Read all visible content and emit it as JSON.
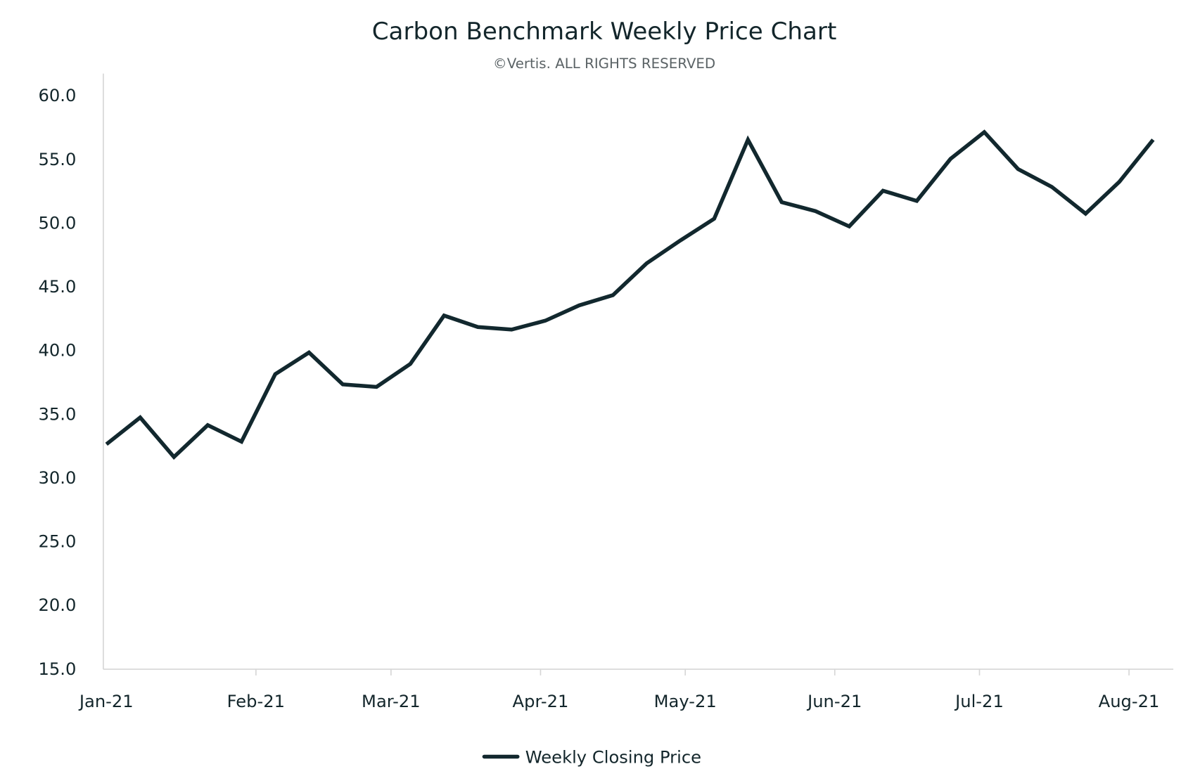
{
  "chart_data": {
    "type": "line",
    "title": "Carbon Benchmark Weekly Price Chart",
    "subtitle": "©Vertis. ALL RIGHTS RESERVED",
    "xlabel": "",
    "ylabel": "",
    "ylim": [
      15,
      60
    ],
    "y_ticks": [
      "15.0",
      "20.0",
      "25.0",
      "30.0",
      "35.0",
      "40.0",
      "45.0",
      "50.0",
      "55.0",
      "60.0"
    ],
    "x_ticks": [
      {
        "label": "Jan-21",
        "date": "2021-01-01"
      },
      {
        "label": "Feb-21",
        "date": "2021-02-01"
      },
      {
        "label": "Mar-21",
        "date": "2021-03-01"
      },
      {
        "label": "Apr-21",
        "date": "2021-04-01"
      },
      {
        "label": "May-21",
        "date": "2021-05-01"
      },
      {
        "label": "Jun-21",
        "date": "2021-06-01"
      },
      {
        "label": "Jul-21",
        "date": "2021-07-01"
      },
      {
        "label": "Aug-21",
        "date": "2021-08-01"
      }
    ],
    "grid": false,
    "legend_position": "bottom",
    "series": [
      {
        "name": "Weekly Closing Price",
        "color": "#12282e",
        "x": [
          "2021-01-01",
          "2021-01-08",
          "2021-01-15",
          "2021-01-22",
          "2021-01-29",
          "2021-02-05",
          "2021-02-12",
          "2021-02-19",
          "2021-02-26",
          "2021-03-05",
          "2021-03-12",
          "2021-03-19",
          "2021-03-26",
          "2021-04-02",
          "2021-04-09",
          "2021-04-16",
          "2021-04-23",
          "2021-04-30",
          "2021-05-07",
          "2021-05-14",
          "2021-05-21",
          "2021-05-28",
          "2021-06-04",
          "2021-06-11",
          "2021-06-18",
          "2021-06-25",
          "2021-07-02",
          "2021-07-09",
          "2021-07-16",
          "2021-07-23",
          "2021-07-30",
          "2021-08-06"
        ],
        "values": [
          32.6,
          34.7,
          31.6,
          34.1,
          32.8,
          38.1,
          39.8,
          37.3,
          37.1,
          38.9,
          42.7,
          41.8,
          41.6,
          42.3,
          43.5,
          44.3,
          46.8,
          48.6,
          50.3,
          56.5,
          51.6,
          50.9,
          49.7,
          52.5,
          51.7,
          55.0,
          57.1,
          54.2,
          52.8,
          50.7,
          53.2,
          56.5
        ]
      }
    ]
  }
}
